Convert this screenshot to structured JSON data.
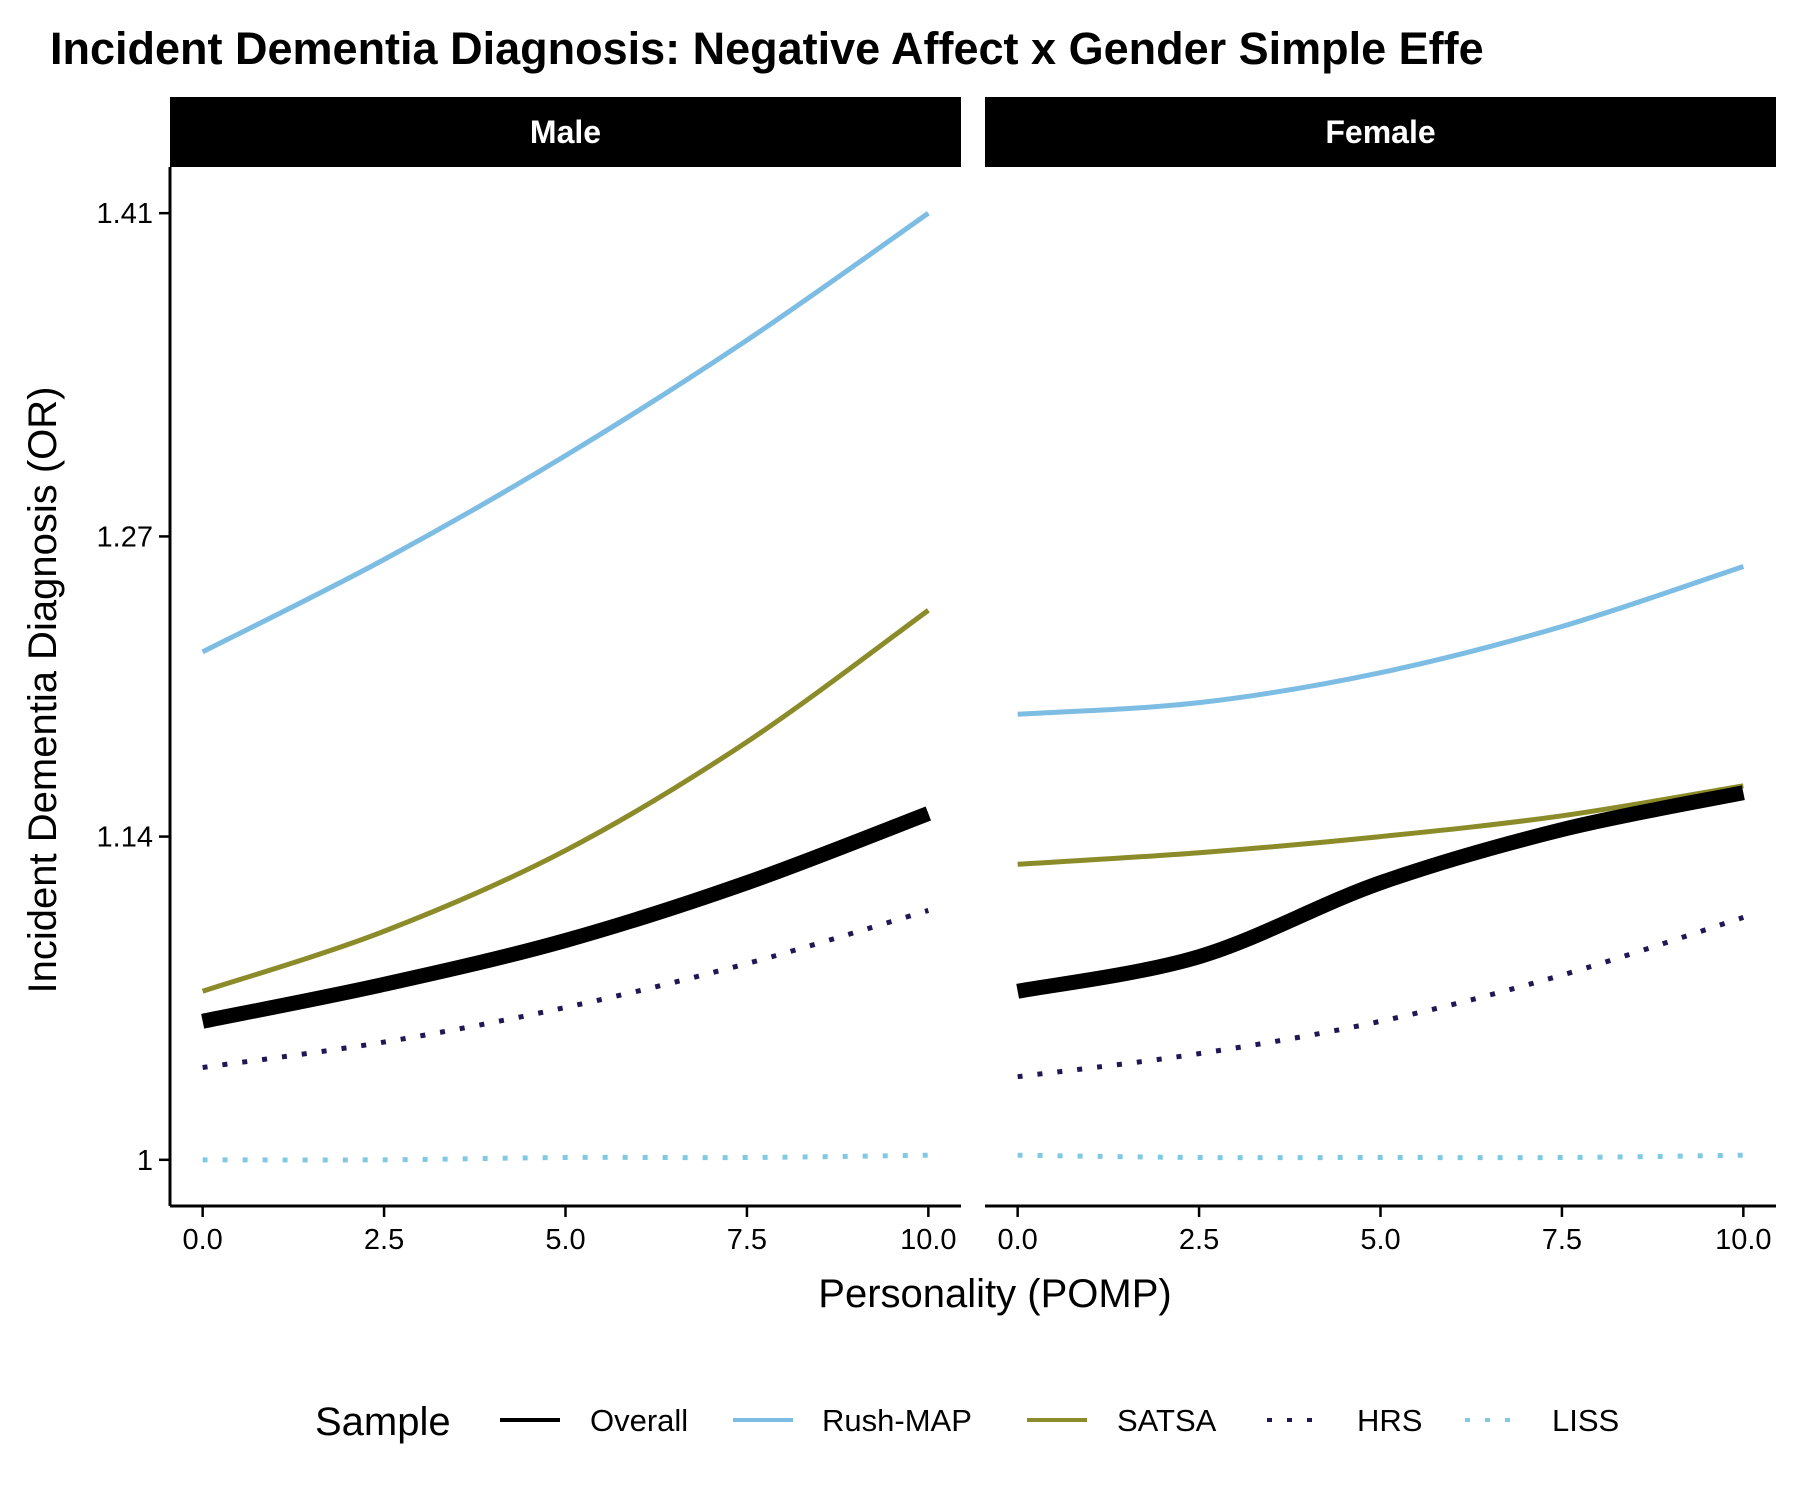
{
  "chart_data": {
    "type": "line",
    "title": "Incident Dementia Diagnosis: Negative Affect x Gender Simple Effe",
    "xlabel": "Personality (POMP)",
    "ylabel": "Incident Dementia Diagnosis (OR)",
    "xlim": [
      -0.45,
      10.45
    ],
    "ylim": [
      0.98,
      1.43
    ],
    "x_ticks": [
      0,
      2.5,
      5,
      7.5,
      10
    ],
    "x_tick_labels": [
      "0.0",
      "2.5",
      "5.0",
      "7.5",
      "10.0"
    ],
    "y_ticks": [
      1.0,
      1.14,
      1.27,
      1.41
    ],
    "y_tick_labels": [
      "1",
      "1.14",
      "1.27",
      "1.41"
    ],
    "grid": false,
    "legend_title": "Sample",
    "legend_position": "bottom",
    "series_styles": [
      {
        "name": "Overall",
        "color": "#000000",
        "dash": "solid",
        "width": "thick"
      },
      {
        "name": "Rush-MAP",
        "color": "#7dbde4",
        "dash": "solid",
        "width": "normal"
      },
      {
        "name": "SATSA",
        "color": "#8b8b2a",
        "dash": "solid",
        "width": "normal"
      },
      {
        "name": "HRS",
        "color": "#231655",
        "dash": "dotted",
        "width": "normal"
      },
      {
        "name": "LISS",
        "color": "#80c9e3",
        "dash": "dotted",
        "width": "normal"
      }
    ],
    "panels": [
      {
        "label": "Male",
        "series": [
          {
            "name": "Overall",
            "x": [
              0,
              2.5,
              5,
              7.5,
              10
            ],
            "y": [
              1.06,
              1.076,
              1.095,
              1.12,
              1.15
            ]
          },
          {
            "name": "Rush-MAP",
            "x": [
              0,
              2.5,
              5,
              7.5,
              10
            ],
            "y": [
              1.22,
              1.26,
              1.305,
              1.355,
              1.41
            ]
          },
          {
            "name": "SATSA",
            "x": [
              0,
              2.5,
              5,
              7.5,
              10
            ],
            "y": [
              1.073,
              1.099,
              1.134,
              1.181,
              1.238
            ]
          },
          {
            "name": "HRS",
            "x": [
              0,
              2.5,
              5,
              7.5,
              10
            ],
            "y": [
              1.04,
              1.051,
              1.066,
              1.085,
              1.108
            ]
          },
          {
            "name": "LISS",
            "x": [
              0,
              2.5,
              5,
              7.5,
              10
            ],
            "y": [
              1.0,
              1.0,
              1.001,
              1.001,
              1.002
            ]
          }
        ]
      },
      {
        "label": "Female",
        "series": [
          {
            "name": "Overall",
            "x": [
              0,
              2.5,
              5,
              7.5,
              10
            ],
            "y": [
              1.073,
              1.088,
              1.12,
              1.143,
              1.159
            ]
          },
          {
            "name": "Rush-MAP",
            "x": [
              0,
              2.5,
              5,
              7.5,
              10
            ],
            "y": [
              1.193,
              1.198,
              1.211,
              1.231,
              1.257
            ]
          },
          {
            "name": "SATSA",
            "x": [
              0,
              2.5,
              5,
              7.5,
              10
            ],
            "y": [
              1.128,
              1.133,
              1.14,
              1.149,
              1.162
            ]
          },
          {
            "name": "HRS",
            "x": [
              0,
              2.5,
              5,
              7.5,
              10
            ],
            "y": [
              1.036,
              1.046,
              1.06,
              1.08,
              1.105
            ]
          },
          {
            "name": "LISS",
            "x": [
              0,
              2.5,
              5,
              7.5,
              10
            ],
            "y": [
              1.002,
              1.001,
              1.001,
              1.001,
              1.002
            ]
          }
        ]
      }
    ]
  }
}
